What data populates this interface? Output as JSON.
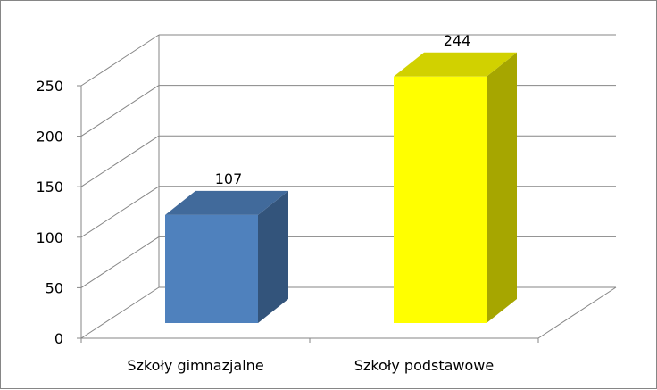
{
  "chart_data": {
    "type": "bar",
    "style": "3d-column",
    "categories": [
      "Szkoły gimnazjalne",
      "Szkoły podstawowe"
    ],
    "values": [
      107,
      244
    ],
    "data_labels": [
      "107",
      "244"
    ],
    "colors": [
      "#4f81bd",
      "#ffff00"
    ],
    "ylim": [
      0,
      250
    ],
    "yticks": [
      0,
      50,
      100,
      150,
      200,
      250
    ],
    "grid": true,
    "legend": "none"
  }
}
